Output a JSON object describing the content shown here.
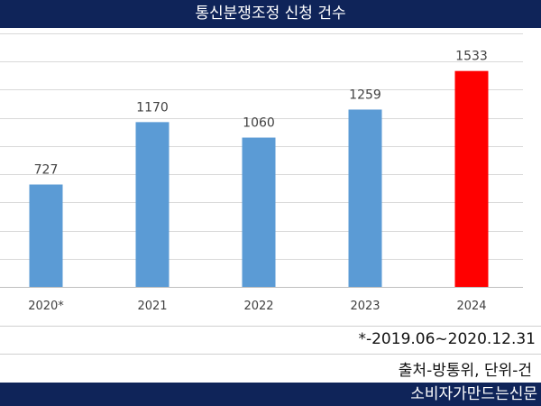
{
  "header": {
    "title": "통신분쟁조정 신청 건수"
  },
  "chart_data": {
    "type": "bar",
    "title": "통신분쟁조정 신청 건수",
    "categories": [
      "2020*",
      "2021",
      "2022",
      "2023",
      "2024"
    ],
    "values": [
      727,
      1170,
      1060,
      1259,
      1533
    ],
    "data_labels": [
      "727",
      "1170",
      "1060",
      "1259",
      "1533"
    ],
    "ylim": [
      0,
      1800
    ],
    "grid": true,
    "legend": "none",
    "bar_color": "#5b9bd5",
    "highlight_color": "#ff0000",
    "highlight_category": "2024",
    "xlabel": "",
    "ylabel": ""
  },
  "footnote": "*-2019.06~2020.12.31",
  "source_text": "출처-방통위, 단위-건",
  "footer": {
    "brand": "소비자가만드는신문"
  },
  "colors": {
    "header_bg": "#0f2459",
    "footer_bg": "#0f2459",
    "grid": "#d9d9d9"
  }
}
